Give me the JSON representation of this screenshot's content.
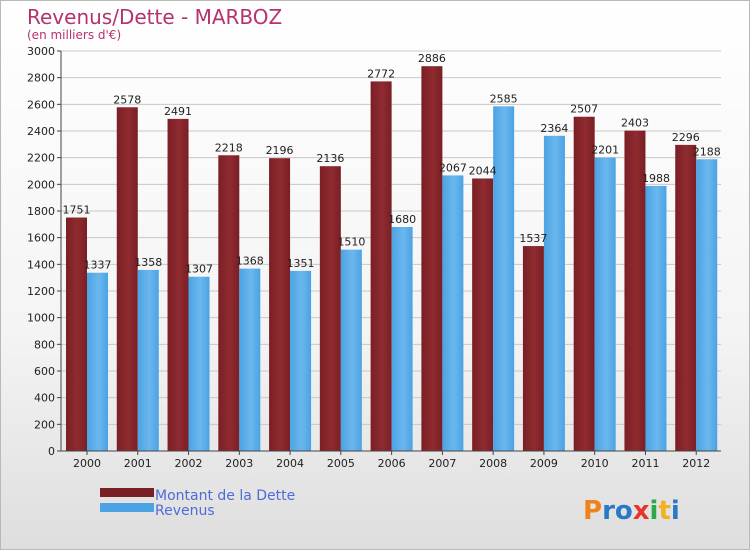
{
  "chart_data": {
    "type": "bar",
    "title": "Revenus/Dette - MARBOZ",
    "subtitle": "(en milliers d'€)",
    "categories": [
      "2000",
      "2001",
      "2002",
      "2003",
      "2004",
      "2005",
      "2006",
      "2007",
      "2008",
      "2009",
      "2010",
      "2011",
      "2012"
    ],
    "series": [
      {
        "name": "Montant de la Dette",
        "color": "#7a1f24",
        "values": [
          1751,
          2578,
          2491,
          2218,
          2196,
          2136,
          2772,
          2886,
          2044,
          1537,
          2507,
          2403,
          2296
        ]
      },
      {
        "name": "Revenus",
        "color": "#4ba3e3",
        "values": [
          1337,
          1358,
          1307,
          1368,
          1351,
          1510,
          1680,
          2067,
          2585,
          2364,
          2201,
          1988,
          2188
        ]
      }
    ],
    "ylim": [
      0,
      3000
    ],
    "yticks": [
      0,
      200,
      400,
      600,
      800,
      1000,
      1200,
      1400,
      1600,
      1800,
      2000,
      2200,
      2400,
      2600,
      2800,
      3000
    ],
    "grid": true,
    "legend_position": "bottom-left"
  },
  "logo": {
    "text": "Proxiti",
    "letter_colors": [
      "#f0821e",
      "#2a78c6",
      "#2a78c6",
      "#e8352b",
      "#2aa84a",
      "#f0b21e",
      "#2a78c6"
    ]
  }
}
